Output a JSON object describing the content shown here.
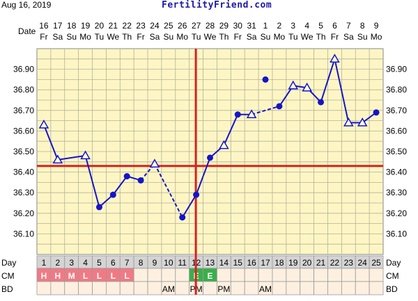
{
  "header": {
    "date": "Aug 16, 2019",
    "site": "FertilityFriend.com"
  },
  "row_labels": {
    "date": "Date",
    "day": "Day",
    "cm": "CM",
    "bd": "BD"
  },
  "chart_data": {
    "type": "line",
    "title": "",
    "dates": [
      "16",
      "17",
      "18",
      "19",
      "20",
      "21",
      "22",
      "23",
      "24",
      "25",
      "26",
      "27",
      "28",
      "29",
      "30",
      "31",
      "1",
      "2",
      "3",
      "4",
      "5",
      "6",
      "7",
      "8",
      "9"
    ],
    "weekdays": [
      "Fr",
      "Sa",
      "Su",
      "Mo",
      "Tu",
      "We",
      "Th",
      "Fr",
      "Sa",
      "Su",
      "Mo",
      "Tu",
      "We",
      "Th",
      "Fr",
      "Sa",
      "Su",
      "Mo",
      "Tu",
      "We",
      "Th",
      "Fr",
      "Sa",
      "Su",
      "Mo"
    ],
    "days": [
      1,
      2,
      3,
      4,
      5,
      6,
      7,
      8,
      9,
      10,
      11,
      12,
      13,
      14,
      15,
      16,
      17,
      18,
      19,
      20,
      21,
      22,
      23,
      24,
      25
    ],
    "ylim": [
      36.0,
      37.0
    ],
    "y_ticks": [
      36.1,
      36.2,
      36.3,
      36.4,
      36.5,
      36.6,
      36.7,
      36.8,
      36.9
    ],
    "y_tick_labels": [
      "36.10",
      "36.20",
      "36.30",
      "36.40",
      "36.50",
      "36.60",
      "36.70",
      "36.80",
      "36.90"
    ],
    "temps": [
      36.63,
      36.46,
      null,
      36.48,
      36.23,
      36.29,
      36.38,
      36.36,
      36.44,
      null,
      36.18,
      36.29,
      36.47,
      36.53,
      36.68,
      36.68,
      36.85,
      36.72,
      36.82,
      36.81,
      36.74,
      36.95,
      36.64,
      36.64,
      36.69
    ],
    "markers": [
      "open",
      "open",
      null,
      "open",
      "filled",
      "filled",
      "filled",
      "filled",
      "open",
      null,
      "filled",
      "filled",
      "filled",
      "open",
      "filled",
      "open",
      "filled",
      "filled",
      "open",
      "open",
      "filled",
      "open",
      "open",
      "open",
      "filled"
    ],
    "segments": [
      {
        "from": 1,
        "to": 2,
        "style": "solid"
      },
      {
        "from": 2,
        "to": 4,
        "style": "solid"
      },
      {
        "from": 4,
        "to": 5,
        "style": "solid"
      },
      {
        "from": 5,
        "to": 6,
        "style": "solid"
      },
      {
        "from": 6,
        "to": 7,
        "style": "solid"
      },
      {
        "from": 7,
        "to": 8,
        "style": "solid"
      },
      {
        "from": 8,
        "to": 9,
        "style": "dashed"
      },
      {
        "from": 9,
        "to": 11,
        "style": "dashed"
      },
      {
        "from": 11,
        "to": 12,
        "style": "solid"
      },
      {
        "from": 12,
        "to": 13,
        "style": "solid"
      },
      {
        "from": 13,
        "to": 14,
        "style": "solid"
      },
      {
        "from": 14,
        "to": 15,
        "style": "solid"
      },
      {
        "from": 15,
        "to": 16,
        "style": "solid"
      },
      {
        "from": 16,
        "to": 18,
        "style": "dashed"
      },
      {
        "from": 18,
        "to": 19,
        "style": "solid"
      },
      {
        "from": 19,
        "to": 20,
        "style": "solid"
      },
      {
        "from": 20,
        "to": 21,
        "style": "solid"
      },
      {
        "from": 21,
        "to": 22,
        "style": "solid"
      },
      {
        "from": 22,
        "to": 23,
        "style": "solid"
      },
      {
        "from": 23,
        "to": 24,
        "style": "solid"
      },
      {
        "from": 24,
        "to": 25,
        "style": "solid"
      }
    ],
    "coverline": 36.43,
    "ovulation_day": 12,
    "cm": [
      "H",
      "H",
      "M",
      "L",
      "L",
      "L",
      "L",
      "",
      "",
      "",
      "",
      "E",
      "E",
      "",
      "",
      "",
      "",
      "",
      "",
      "",
      "",
      "",
      "",
      "",
      ""
    ],
    "cm_colors": {
      "H": "#f07a84",
      "M": "#f07a84",
      "L": "#f07a84",
      "E": "#3aae4a"
    },
    "bd": [
      "",
      "",
      "",
      "",
      "",
      "",
      "",
      "",
      "",
      "AM",
      "",
      "PM",
      "",
      "PM",
      "",
      "",
      "AM",
      "",
      "",
      "",
      "",
      "",
      "",
      "",
      ""
    ],
    "colors": {
      "plot_bg": "#fdf6c4",
      "grid": "#b5b09a",
      "line": "#1515c8",
      "cover": "#dd1f1f",
      "ovulation": "#dd1f1f",
      "row_bg": "#fdf0e0",
      "row_header_bg": "#d4d4d4"
    },
    "grid": true
  }
}
